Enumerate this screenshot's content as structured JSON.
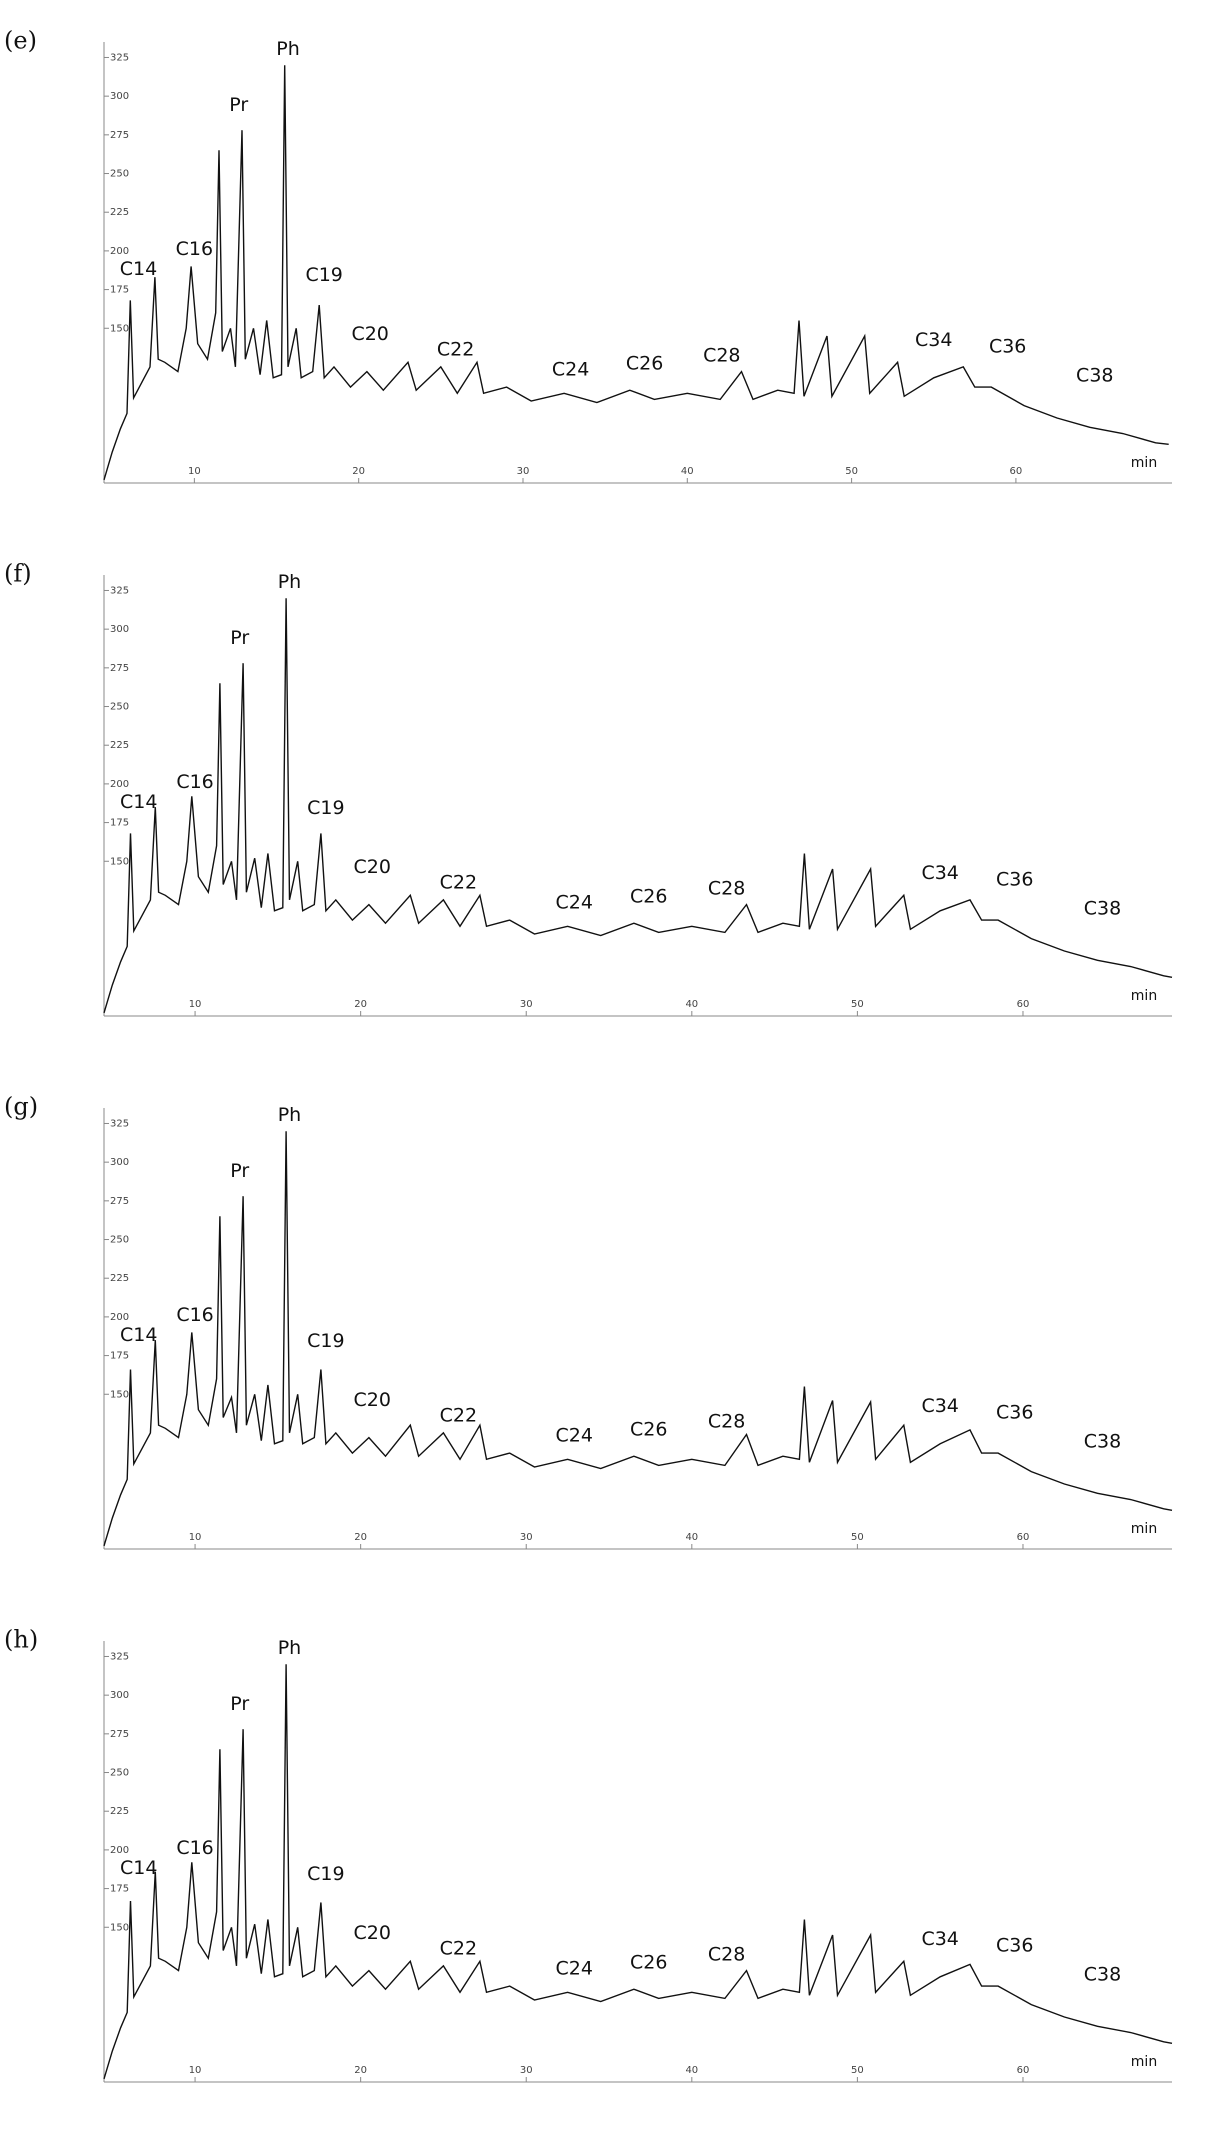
{
  "chart_data": [
    {
      "type": "line",
      "label": "(e)",
      "x_label": "min",
      "color": "#111111",
      "xlim": [
        4.5,
        69.5
      ],
      "ylim": [
        50,
        335
      ],
      "xticks": [
        10,
        20,
        30,
        40,
        50,
        60
      ],
      "yticks": [
        150,
        175,
        200,
        225,
        250,
        275,
        300,
        325
      ],
      "x": [
        4.5,
        5.0,
        5.5,
        5.9,
        6.1,
        6.3,
        6.8,
        7.3,
        7.6,
        7.8,
        8.2,
        9.0,
        9.5,
        9.8,
        10.2,
        10.8,
        11.3,
        11.5,
        11.7,
        12.2,
        12.5,
        12.9,
        13.1,
        13.6,
        14.0,
        14.4,
        14.8,
        15.3,
        15.5,
        15.7,
        16.2,
        16.5,
        17.2,
        17.6,
        17.9,
        18.5,
        19.5,
        20.5,
        21.5,
        23.0,
        23.5,
        25.0,
        26.0,
        27.2,
        27.6,
        29.0,
        30.5,
        32.5,
        34.5,
        36.5,
        38.0,
        40.0,
        42.0,
        43.3,
        44.0,
        45.5,
        46.5,
        46.8,
        47.1,
        48.5,
        48.8,
        50.8,
        51.1,
        52.8,
        53.2,
        55.0,
        56.8,
        57.5,
        58.5,
        60.5,
        62.5,
        64.5,
        66.5,
        68.5,
        69.3
      ],
      "values": [
        52,
        70,
        85,
        95,
        168,
        105,
        115,
        125,
        183,
        130,
        128,
        122,
        150,
        190,
        140,
        130,
        160,
        265,
        135,
        150,
        125,
        278,
        130,
        150,
        120,
        155,
        118,
        120,
        320,
        125,
        150,
        118,
        122,
        165,
        118,
        125,
        112,
        122,
        110,
        128,
        110,
        125,
        108,
        128,
        108,
        112,
        103,
        108,
        102,
        110,
        104,
        108,
        104,
        122,
        104,
        110,
        108,
        155,
        106,
        145,
        106,
        145,
        108,
        128,
        106,
        118,
        125,
        112,
        112,
        100,
        92,
        86,
        82,
        76,
        75
      ],
      "annotations": [
        {
          "text": "C14",
          "x": 6.6,
          "y": 188
        },
        {
          "text": "C16",
          "x": 10.0,
          "y": 201
        },
        {
          "text": "Pr",
          "x": 12.7,
          "y": 294
        },
        {
          "text": "Ph",
          "x": 15.7,
          "y": 330
        },
        {
          "text": "C19",
          "x": 17.9,
          "y": 184
        },
        {
          "text": "C20",
          "x": 20.7,
          "y": 146
        },
        {
          "text": "C22",
          "x": 25.9,
          "y": 136
        },
        {
          "text": "C24",
          "x": 32.9,
          "y": 123
        },
        {
          "text": "C26",
          "x": 37.4,
          "y": 127
        },
        {
          "text": "C28",
          "x": 42.1,
          "y": 132
        },
        {
          "text": "C34",
          "x": 55.0,
          "y": 142
        },
        {
          "text": "C36",
          "x": 59.5,
          "y": 138
        },
        {
          "text": "C38",
          "x": 64.8,
          "y": 119
        }
      ]
    },
    {
      "type": "line",
      "label": "(f)",
      "x_label": "min",
      "color": "#111111",
      "xlim": [
        4.5,
        69.0
      ],
      "ylim": [
        50,
        335
      ],
      "xticks": [
        10,
        20,
        30,
        40,
        50,
        60
      ],
      "yticks": [
        150,
        175,
        200,
        225,
        250,
        275,
        300,
        325
      ],
      "x": [
        4.5,
        5.0,
        5.5,
        5.9,
        6.1,
        6.3,
        6.8,
        7.3,
        7.6,
        7.8,
        8.2,
        9.0,
        9.5,
        9.8,
        10.2,
        10.8,
        11.3,
        11.5,
        11.7,
        12.2,
        12.5,
        12.9,
        13.1,
        13.6,
        14.0,
        14.4,
        14.8,
        15.3,
        15.5,
        15.7,
        16.2,
        16.5,
        17.2,
        17.6,
        17.9,
        18.5,
        19.5,
        20.5,
        21.5,
        23.0,
        23.5,
        25.0,
        26.0,
        27.2,
        27.6,
        29.0,
        30.5,
        32.5,
        34.5,
        36.5,
        38.0,
        40.0,
        42.0,
        43.3,
        44.0,
        45.5,
        46.5,
        46.8,
        47.1,
        48.5,
        48.8,
        50.8,
        51.1,
        52.8,
        53.2,
        55.0,
        56.8,
        57.5,
        58.5,
        60.5,
        62.5,
        64.5,
        66.5,
        68.5,
        69.0
      ],
      "values": [
        52,
        70,
        85,
        95,
        168,
        105,
        115,
        125,
        185,
        130,
        128,
        122,
        150,
        192,
        140,
        130,
        160,
        265,
        135,
        150,
        125,
        278,
        130,
        152,
        120,
        155,
        118,
        120,
        320,
        125,
        150,
        118,
        122,
        168,
        118,
        125,
        112,
        122,
        110,
        128,
        110,
        125,
        108,
        128,
        108,
        112,
        103,
        108,
        102,
        110,
        104,
        108,
        104,
        122,
        104,
        110,
        108,
        155,
        106,
        145,
        106,
        145,
        108,
        128,
        106,
        118,
        125,
        112,
        112,
        100,
        92,
        86,
        82,
        76,
        75
      ],
      "annotations": [
        {
          "text": "C14",
          "x": 6.6,
          "y": 188
        },
        {
          "text": "C16",
          "x": 10.0,
          "y": 201
        },
        {
          "text": "Pr",
          "x": 12.7,
          "y": 294
        },
        {
          "text": "Ph",
          "x": 15.7,
          "y": 330
        },
        {
          "text": "C19",
          "x": 17.9,
          "y": 184
        },
        {
          "text": "C20",
          "x": 20.7,
          "y": 146
        },
        {
          "text": "C22",
          "x": 25.9,
          "y": 136
        },
        {
          "text": "C24",
          "x": 32.9,
          "y": 123
        },
        {
          "text": "C26",
          "x": 37.4,
          "y": 127
        },
        {
          "text": "C28",
          "x": 42.1,
          "y": 132
        },
        {
          "text": "C34",
          "x": 55.0,
          "y": 142
        },
        {
          "text": "C36",
          "x": 59.5,
          "y": 138
        },
        {
          "text": "C38",
          "x": 64.8,
          "y": 119
        }
      ]
    },
    {
      "type": "line",
      "label": "(g)",
      "x_label": "min",
      "color": "#111111",
      "xlim": [
        4.5,
        69.0
      ],
      "ylim": [
        50,
        335
      ],
      "xticks": [
        10,
        20,
        30,
        40,
        50,
        60
      ],
      "yticks": [
        150,
        175,
        200,
        225,
        250,
        275,
        300,
        325
      ],
      "x": [
        4.5,
        5.0,
        5.5,
        5.9,
        6.1,
        6.3,
        6.8,
        7.3,
        7.6,
        7.8,
        8.2,
        9.0,
        9.5,
        9.8,
        10.2,
        10.8,
        11.3,
        11.5,
        11.7,
        12.2,
        12.5,
        12.9,
        13.1,
        13.6,
        14.0,
        14.4,
        14.8,
        15.3,
        15.5,
        15.7,
        16.2,
        16.5,
        17.2,
        17.6,
        17.9,
        18.5,
        19.5,
        20.5,
        21.5,
        23.0,
        23.5,
        25.0,
        26.0,
        27.2,
        27.6,
        29.0,
        30.5,
        32.5,
        34.5,
        36.5,
        38.0,
        40.0,
        42.0,
        43.3,
        44.0,
        45.5,
        46.5,
        46.8,
        47.1,
        48.5,
        48.8,
        50.8,
        51.1,
        52.8,
        53.2,
        55.0,
        56.8,
        57.5,
        58.5,
        60.5,
        62.5,
        64.5,
        66.5,
        68.5,
        69.0
      ],
      "values": [
        52,
        70,
        85,
        95,
        166,
        105,
        115,
        125,
        185,
        130,
        128,
        122,
        150,
        190,
        140,
        130,
        160,
        265,
        135,
        148,
        125,
        278,
        130,
        150,
        120,
        156,
        118,
        120,
        320,
        125,
        150,
        118,
        122,
        166,
        118,
        125,
        112,
        122,
        110,
        130,
        110,
        125,
        108,
        130,
        108,
        112,
        103,
        108,
        102,
        110,
        104,
        108,
        104,
        124,
        104,
        110,
        108,
        155,
        106,
        146,
        106,
        145,
        108,
        130,
        106,
        118,
        127,
        112,
        112,
        100,
        92,
        86,
        82,
        76,
        75
      ],
      "annotations": [
        {
          "text": "C14",
          "x": 6.6,
          "y": 188
        },
        {
          "text": "C16",
          "x": 10.0,
          "y": 201
        },
        {
          "text": "Pr",
          "x": 12.7,
          "y": 294
        },
        {
          "text": "Ph",
          "x": 15.7,
          "y": 330
        },
        {
          "text": "C19",
          "x": 17.9,
          "y": 184
        },
        {
          "text": "C20",
          "x": 20.7,
          "y": 146
        },
        {
          "text": "C22",
          "x": 25.9,
          "y": 136
        },
        {
          "text": "C24",
          "x": 32.9,
          "y": 123
        },
        {
          "text": "C26",
          "x": 37.4,
          "y": 127
        },
        {
          "text": "C28",
          "x": 42.1,
          "y": 132
        },
        {
          "text": "C34",
          "x": 55.0,
          "y": 142
        },
        {
          "text": "C36",
          "x": 59.5,
          "y": 138
        },
        {
          "text": "C38",
          "x": 64.8,
          "y": 119
        }
      ]
    },
    {
      "type": "line",
      "label": "(h)",
      "x_label": "min",
      "color": "#111111",
      "xlim": [
        4.5,
        69.0
      ],
      "ylim": [
        50,
        335
      ],
      "xticks": [
        10,
        20,
        30,
        40,
        50,
        60
      ],
      "yticks": [
        150,
        175,
        200,
        225,
        250,
        275,
        300,
        325
      ],
      "x": [
        4.5,
        5.0,
        5.5,
        5.9,
        6.1,
        6.3,
        6.8,
        7.3,
        7.6,
        7.8,
        8.2,
        9.0,
        9.5,
        9.8,
        10.2,
        10.8,
        11.3,
        11.5,
        11.7,
        12.2,
        12.5,
        12.9,
        13.1,
        13.6,
        14.0,
        14.4,
        14.8,
        15.3,
        15.5,
        15.7,
        16.2,
        16.5,
        17.2,
        17.6,
        17.9,
        18.5,
        19.5,
        20.5,
        21.5,
        23.0,
        23.5,
        25.0,
        26.0,
        27.2,
        27.6,
        29.0,
        30.5,
        32.5,
        34.5,
        36.5,
        38.0,
        40.0,
        42.0,
        43.3,
        44.0,
        45.5,
        46.5,
        46.8,
        47.1,
        48.5,
        48.8,
        50.8,
        51.1,
        52.8,
        53.2,
        55.0,
        56.8,
        57.5,
        58.5,
        60.5,
        62.5,
        64.5,
        66.5,
        68.5,
        69.0
      ],
      "values": [
        52,
        70,
        85,
        95,
        167,
        105,
        115,
        125,
        186,
        130,
        128,
        122,
        150,
        192,
        140,
        130,
        160,
        265,
        135,
        150,
        125,
        278,
        130,
        152,
        120,
        155,
        118,
        120,
        320,
        125,
        150,
        118,
        122,
        166,
        118,
        125,
        112,
        122,
        110,
        128,
        110,
        125,
        108,
        128,
        108,
        112,
        103,
        108,
        102,
        110,
        104,
        108,
        104,
        122,
        104,
        110,
        108,
        155,
        106,
        145,
        106,
        145,
        108,
        128,
        106,
        118,
        126,
        112,
        112,
        100,
        92,
        86,
        82,
        76,
        75
      ],
      "annotations": [
        {
          "text": "C14",
          "x": 6.6,
          "y": 188
        },
        {
          "text": "C16",
          "x": 10.0,
          "y": 201
        },
        {
          "text": "Pr",
          "x": 12.7,
          "y": 294
        },
        {
          "text": "Ph",
          "x": 15.7,
          "y": 330
        },
        {
          "text": "C19",
          "x": 17.9,
          "y": 184
        },
        {
          "text": "C20",
          "x": 20.7,
          "y": 146
        },
        {
          "text": "C22",
          "x": 25.9,
          "y": 136
        },
        {
          "text": "C24",
          "x": 32.9,
          "y": 123
        },
        {
          "text": "C26",
          "x": 37.4,
          "y": 127
        },
        {
          "text": "C28",
          "x": 42.1,
          "y": 132
        },
        {
          "text": "C34",
          "x": 55.0,
          "y": 142
        },
        {
          "text": "C36",
          "x": 59.5,
          "y": 138
        },
        {
          "text": "C38",
          "x": 64.8,
          "y": 119
        }
      ]
    }
  ]
}
